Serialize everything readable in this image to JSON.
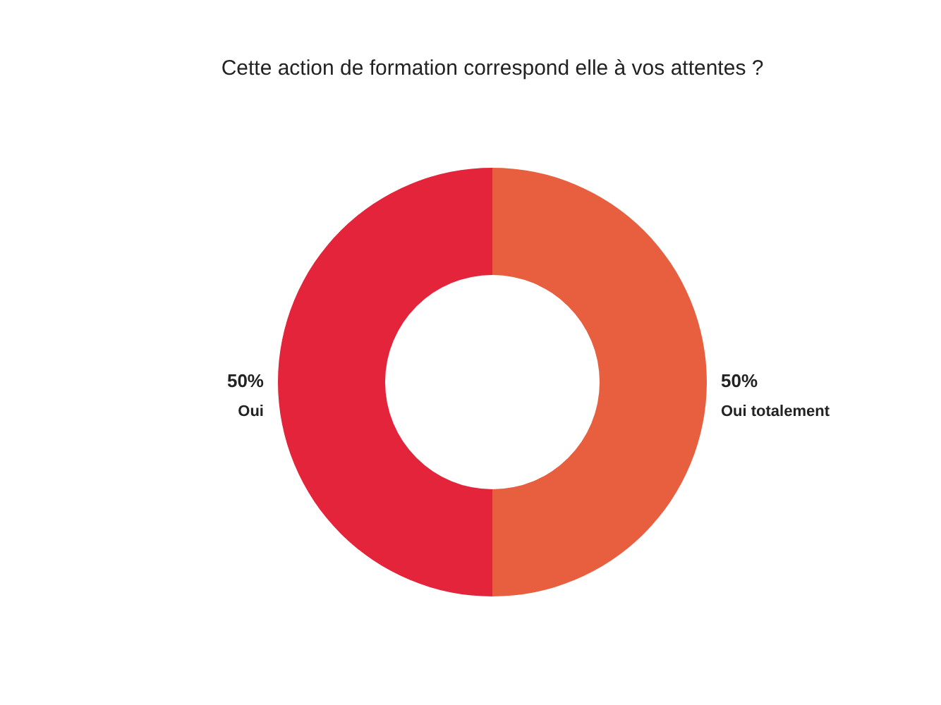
{
  "chart_data": {
    "type": "donut",
    "title": "Cette action de formation correspond elle à vos attentes ?",
    "categories": [
      "Oui totalement",
      "Oui"
    ],
    "values": [
      50,
      50
    ],
    "value_labels": [
      "50%",
      "50%"
    ],
    "colors": [
      "#e85f40",
      "#e3243a"
    ],
    "legend": false
  }
}
